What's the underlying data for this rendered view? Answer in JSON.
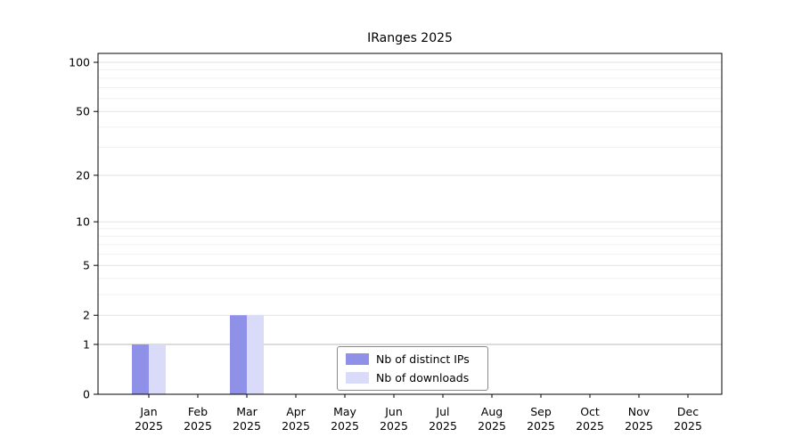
{
  "chart_data": {
    "type": "bar",
    "title": "IRanges 2025",
    "year_label": "2025",
    "categories": [
      "Jan",
      "Feb",
      "Mar",
      "Apr",
      "May",
      "Jun",
      "Jul",
      "Aug",
      "Sep",
      "Oct",
      "Nov",
      "Dec"
    ],
    "series": [
      {
        "name": "Nb of distinct IPs",
        "color": "#8f90e8",
        "values": [
          1,
          0,
          2,
          0,
          0,
          0,
          0,
          0,
          0,
          0,
          0,
          0
        ]
      },
      {
        "name": "Nb of downloads",
        "color": "#dadbf8",
        "values": [
          1,
          0,
          2,
          0,
          0,
          0,
          0,
          0,
          0,
          0,
          0,
          0
        ]
      }
    ],
    "y_axis": {
      "ticks": [
        0,
        1,
        2,
        5,
        10,
        20,
        50,
        100
      ],
      "minor_gridlines": [
        3,
        4,
        6,
        7,
        8,
        9,
        30,
        40,
        60,
        70,
        80,
        90
      ],
      "scale": "log1p",
      "range": [
        0,
        100
      ]
    },
    "grid": true,
    "legend": {
      "position": "bottom-center",
      "entries": [
        "Nb of distinct IPs",
        "Nb of downloads"
      ]
    }
  }
}
